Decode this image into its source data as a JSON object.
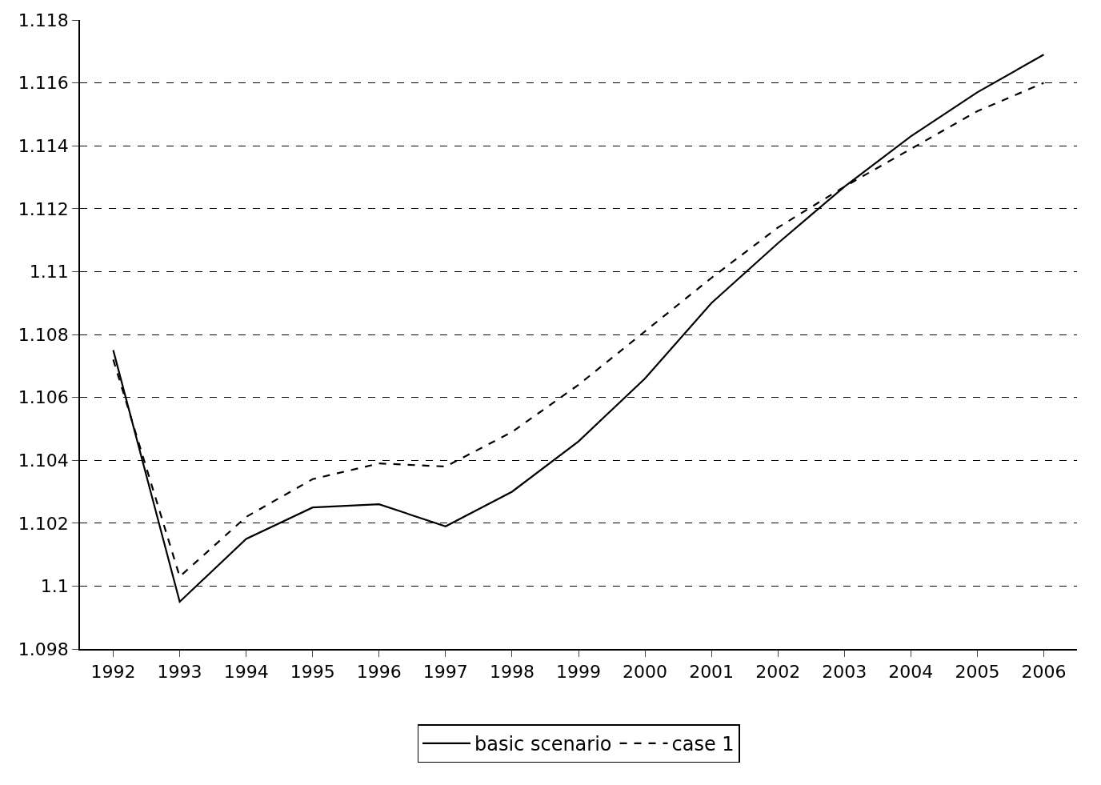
{
  "chart_data": {
    "type": "line",
    "categories": [
      "1992",
      "1993",
      "1994",
      "1995",
      "1996",
      "1997",
      "1998",
      "1999",
      "2000",
      "2001",
      "2002",
      "2003",
      "2004",
      "2005",
      "2006"
    ],
    "series": [
      {
        "name": "basic scenario",
        "color": "#000000",
        "line_style": "solid",
        "values": [
          1.1075,
          1.0995,
          1.1015,
          1.1025,
          1.1026,
          1.1019,
          1.103,
          1.1046,
          1.1066,
          1.109,
          1.1109,
          1.1127,
          1.1143,
          1.1157,
          1.1169
        ]
      },
      {
        "name": "case 1",
        "color": "#000000",
        "line_style": "dashed",
        "values": [
          1.1072,
          1.1003,
          1.1022,
          1.1034,
          1.1039,
          1.1038,
          1.1049,
          1.1064,
          1.1081,
          1.1098,
          1.1114,
          1.1127,
          1.1139,
          1.1151,
          1.116
        ]
      }
    ],
    "ylim": [
      1.098,
      1.118
    ],
    "yticks": [
      1.098,
      1.1,
      1.102,
      1.104,
      1.106,
      1.108,
      1.11,
      1.112,
      1.114,
      1.116,
      1.118
    ],
    "grid": "y",
    "legend": "bottom",
    "marker": "none"
  }
}
